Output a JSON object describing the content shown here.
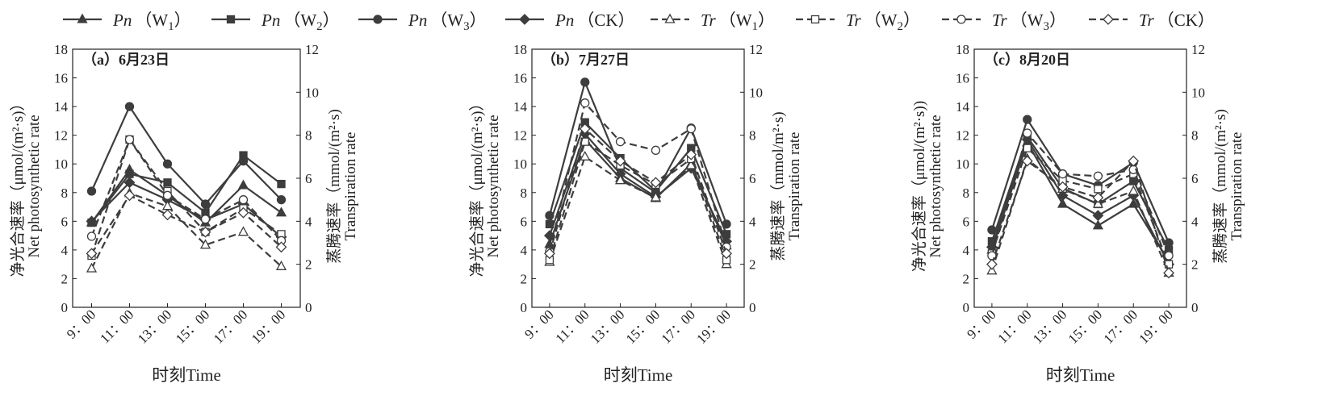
{
  "chart_data": [
    {
      "type": "line",
      "title": "（a）6月23日",
      "x": [
        "9：00",
        "11：00",
        "13：00",
        "15：00",
        "17：00",
        "19：00"
      ],
      "xlabel": "时刻Time",
      "ylabel": [
        "净光合速率（μmol/(m²·s)）",
        "Net photosynthetic rate"
      ],
      "ylabel2": [
        "蒸腾速率（mmol/(m²·s)",
        "Transpiration rate"
      ],
      "ylim": [
        0,
        18
      ],
      "yticks": [
        0,
        2,
        4,
        6,
        8,
        10,
        12,
        14,
        16,
        18
      ],
      "y2lim": [
        0,
        12
      ],
      "y2ticks": [
        0,
        2,
        4,
        6,
        8,
        10,
        12
      ],
      "grid": false,
      "series": [
        {
          "name": "Pn（W1）",
          "axis": "left",
          "values": [
            5.9,
            9.6,
            7.8,
            5.9,
            8.5,
            6.6
          ]
        },
        {
          "name": "Pn（W2）",
          "axis": "left",
          "values": [
            5.9,
            9.3,
            8.7,
            6.6,
            10.6,
            8.6
          ]
        },
        {
          "name": "Pn（W3）",
          "axis": "left",
          "values": [
            8.1,
            14.0,
            10.0,
            7.2,
            10.2,
            7.5
          ]
        },
        {
          "name": "Pn（CK）",
          "axis": "left",
          "values": [
            6.0,
            8.7,
            7.5,
            6.1,
            7.2,
            4.9
          ]
        },
        {
          "name": "Tr（W1）",
          "axis": "right",
          "values": [
            1.8,
            5.3,
            4.7,
            2.9,
            3.5,
            1.9
          ]
        },
        {
          "name": "Tr（W2）",
          "axis": "right",
          "values": [
            2.4,
            7.8,
            5.4,
            3.5,
            4.6,
            3.4
          ]
        },
        {
          "name": "Tr（W3）",
          "axis": "right",
          "values": [
            3.3,
            7.8,
            5.2,
            4.1,
            5.0,
            3.1
          ]
        },
        {
          "name": "Tr（CK）",
          "axis": "right",
          "values": [
            2.5,
            5.2,
            4.3,
            3.5,
            4.4,
            2.8
          ]
        }
      ]
    },
    {
      "type": "line",
      "title": "（b）7月27日",
      "x": [
        "9：00",
        "11：00",
        "13：00",
        "15：00",
        "17：00",
        "19：00"
      ],
      "xlabel": "时刻Time",
      "ylabel": [
        "净光合速率（μmol/(m²·s)）",
        "Net photosynthetic rate"
      ],
      "ylabel2": [
        "蒸腾速率（mmol/m²·s)",
        "Transpiration rate"
      ],
      "ylim": [
        0,
        18
      ],
      "yticks": [
        0,
        2,
        4,
        6,
        8,
        10,
        12,
        14,
        16,
        18
      ],
      "y2lim": [
        0,
        12
      ],
      "y2ticks": [
        0,
        2,
        4,
        6,
        8,
        10,
        12
      ],
      "grid": false,
      "series": [
        {
          "name": "Pn（W1）",
          "axis": "left",
          "values": [
            4.4,
            11.7,
            9.0,
            7.6,
            10.0,
            4.3
          ]
        },
        {
          "name": "Pn（W2）",
          "axis": "left",
          "values": [
            5.8,
            12.9,
            10.4,
            8.1,
            11.1,
            5.1
          ]
        },
        {
          "name": "Pn（W3）",
          "axis": "left",
          "values": [
            6.4,
            15.7,
            9.7,
            8.0,
            12.5,
            5.8
          ]
        },
        {
          "name": "Pn（CK）",
          "axis": "left",
          "values": [
            5.0,
            12.1,
            9.3,
            7.7,
            9.7,
            4.6
          ]
        },
        {
          "name": "Tr（W1）",
          "axis": "right",
          "values": [
            2.1,
            7.0,
            5.9,
            5.1,
            6.6,
            2.0
          ]
        },
        {
          "name": "Tr（W2）",
          "axis": "right",
          "values": [
            2.2,
            7.7,
            6.6,
            5.7,
            6.9,
            2.2
          ]
        },
        {
          "name": "Tr（W3）",
          "axis": "right",
          "values": [
            2.6,
            9.5,
            7.7,
            7.3,
            8.3,
            2.8
          ]
        },
        {
          "name": "Tr（CK）",
          "axis": "right",
          "values": [
            2.5,
            8.3,
            6.8,
            5.8,
            7.1,
            2.5
          ]
        }
      ]
    },
    {
      "type": "line",
      "title": "（c）8月20日",
      "x": [
        "9：00",
        "11：00",
        "13：00",
        "15：00",
        "17：00",
        "19：00"
      ],
      "xlabel": "时刻Time",
      "ylabel": [
        "净光合速率（μmol/(m²·s))",
        "Net photosynthetic rate"
      ],
      "ylabel2": [
        "蒸腾速率（mmol/(m²·s)",
        "Transpiration rate"
      ],
      "ylim": [
        0,
        18
      ],
      "yticks": [
        0,
        2,
        4,
        6,
        8,
        10,
        12,
        14,
        16,
        18
      ],
      "y2lim": [
        0,
        12
      ],
      "y2ticks": [
        0,
        2,
        4,
        6,
        8,
        10,
        12
      ],
      "grid": false,
      "series": [
        {
          "name": "Pn（W1）",
          "axis": "left",
          "values": [
            4.0,
            11.5,
            7.2,
            5.7,
            7.2,
            3.2
          ]
        },
        {
          "name": "Pn（W2）",
          "axis": "left",
          "values": [
            4.6,
            11.9,
            8.3,
            7.2,
            8.8,
            4.0
          ]
        },
        {
          "name": "Pn（W3）",
          "axis": "left",
          "values": [
            5.4,
            13.1,
            9.3,
            8.5,
            10.1,
            4.5
          ]
        },
        {
          "name": "Pn（CK）",
          "axis": "left",
          "values": [
            4.2,
            11.7,
            7.8,
            6.4,
            7.8,
            3.0
          ]
        },
        {
          "name": "Tr（W1）",
          "axis": "right",
          "values": [
            1.7,
            6.9,
            5.5,
            4.8,
            5.4,
            1.6
          ]
        },
        {
          "name": "Tr（W2）",
          "axis": "right",
          "values": [
            2.5,
            7.4,
            5.9,
            5.5,
            6.2,
            2.0
          ]
        },
        {
          "name": "Tr（W3）",
          "axis": "right",
          "values": [
            2.4,
            8.1,
            6.2,
            6.1,
            6.4,
            2.4
          ]
        },
        {
          "name": "Tr（CK）",
          "axis": "right",
          "values": [
            2.0,
            6.8,
            5.6,
            5.1,
            6.8,
            1.6
          ]
        }
      ]
    }
  ],
  "legend": {
    "placement": "top",
    "items": [
      {
        "var": "Pn",
        "sub": "W",
        "subnum": "1",
        "marker": "triangle",
        "filled": true,
        "dashed": false
      },
      {
        "var": "Pn",
        "sub": "W",
        "subnum": "2",
        "marker": "square",
        "filled": true,
        "dashed": false
      },
      {
        "var": "Pn",
        "sub": "W",
        "subnum": "3",
        "marker": "circle",
        "filled": true,
        "dashed": false
      },
      {
        "var": "Pn",
        "sub": "CK",
        "subnum": "",
        "marker": "diamond",
        "filled": true,
        "dashed": false
      },
      {
        "var": "Tr",
        "sub": "W",
        "subnum": "1",
        "marker": "triangle",
        "filled": false,
        "dashed": true
      },
      {
        "var": "Tr",
        "sub": "W",
        "subnum": "2",
        "marker": "square",
        "filled": false,
        "dashed": true
      },
      {
        "var": "Tr",
        "sub": "W",
        "subnum": "3",
        "marker": "circle",
        "filled": false,
        "dashed": true
      },
      {
        "var": "Tr",
        "sub": "CK",
        "subnum": "",
        "marker": "diamond",
        "filled": false,
        "dashed": true
      }
    ]
  },
  "colors": {
    "line": "#3d3d3d",
    "axis": "#222222",
    "fill_open": "#ffffff"
  }
}
